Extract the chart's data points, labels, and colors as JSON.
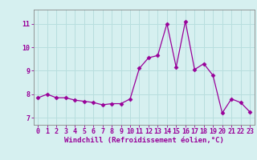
{
  "x": [
    0,
    1,
    2,
    3,
    4,
    5,
    6,
    7,
    8,
    9,
    10,
    11,
    12,
    13,
    14,
    15,
    16,
    17,
    18,
    19,
    20,
    21,
    22,
    23
  ],
  "y": [
    7.85,
    8.0,
    7.85,
    7.85,
    7.75,
    7.7,
    7.65,
    7.55,
    7.6,
    7.6,
    7.8,
    9.1,
    9.55,
    9.65,
    11.0,
    9.15,
    11.1,
    9.05,
    9.3,
    8.8,
    7.2,
    7.8,
    7.65,
    7.25
  ],
  "line_color": "#990099",
  "marker": "D",
  "marker_size": 2.5,
  "bg_color": "#d6f0f0",
  "grid_color": "#b8dede",
  "xlabel": "Windchill (Refroidissement éolien,°C)",
  "ylim": [
    6.7,
    11.6
  ],
  "xlim": [
    -0.5,
    23.5
  ],
  "yticks": [
    7,
    8,
    9,
    10,
    11
  ],
  "xticks": [
    0,
    1,
    2,
    3,
    4,
    5,
    6,
    7,
    8,
    9,
    10,
    11,
    12,
    13,
    14,
    15,
    16,
    17,
    18,
    19,
    20,
    21,
    22,
    23
  ],
  "xtick_labels": [
    "0",
    "1",
    "2",
    "3",
    "4",
    "5",
    "6",
    "7",
    "8",
    "9",
    "10",
    "11",
    "12",
    "13",
    "14",
    "15",
    "16",
    "17",
    "18",
    "19",
    "20",
    "21",
    "22",
    "23"
  ],
  "tick_color": "#990099",
  "label_color": "#990099",
  "label_fontsize": 6.5,
  "tick_fontsize": 6.0,
  "spine_color": "#888888",
  "top_label": "11"
}
